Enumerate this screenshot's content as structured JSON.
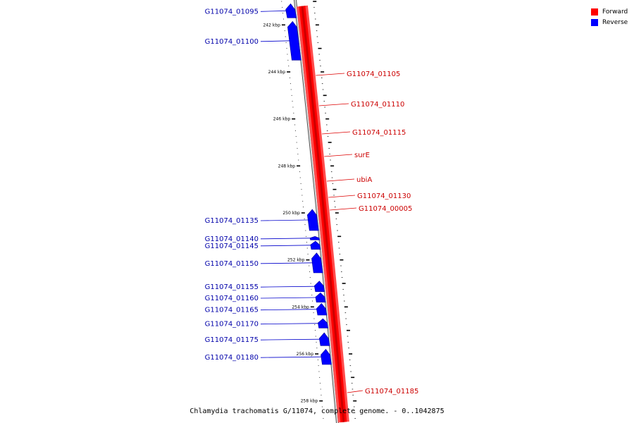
{
  "legend": {
    "forward": {
      "label": "Forward",
      "color": "#ff0000"
    },
    "reverse": {
      "label": "Reverse",
      "color": "#0000ff"
    }
  },
  "caption": "Chlamydia trachomatis G/11074, complete genome. - 0..1042875",
  "ticks": [
    {
      "label": "242 kbp",
      "pos": 242000
    },
    {
      "label": "244 kbp",
      "pos": 244000
    },
    {
      "label": "246 kbp",
      "pos": 246000
    },
    {
      "label": "248 kbp",
      "pos": 248000
    },
    {
      "label": "250 kbp",
      "pos": 250000
    },
    {
      "label": "252 kbp",
      "pos": 252000
    },
    {
      "label": "254 kbp",
      "pos": 254000
    },
    {
      "label": "256 kbp",
      "pos": 256000
    },
    {
      "label": "258 kbp",
      "pos": 258000
    }
  ],
  "forward_genes": [
    {
      "name": "G11074_01105",
      "start": 241200,
      "end": 258900
    },
    {
      "name": "G11074_01110"
    },
    {
      "name": "G11074_01115"
    },
    {
      "name": "surE"
    },
    {
      "name": "ubiA"
    },
    {
      "name": "G11074_01130"
    },
    {
      "name": "G11074_00005"
    },
    {
      "name": "G11074_01185"
    }
  ],
  "reverse_genes": [
    {
      "name": "G11074_01095",
      "start": 241100,
      "end": 241700
    },
    {
      "name": "G11074_01100",
      "start": 241850,
      "end": 243500
    },
    {
      "name": "G11074_01135",
      "start": 249850,
      "end": 250750
    },
    {
      "name": "G11074_01140",
      "start": 251000,
      "end": 251150
    },
    {
      "name": "G11074_01145",
      "start": 251200,
      "end": 251550
    },
    {
      "name": "G11074_01150",
      "start": 251700,
      "end": 252550
    },
    {
      "name": "G11074_01155",
      "start": 252900,
      "end": 253350
    },
    {
      "name": "G11074_01160",
      "start": 253400,
      "end": 253800
    },
    {
      "name": "G11074_01165",
      "start": 253850,
      "end": 254350
    },
    {
      "name": "G11074_01170",
      "start": 254500,
      "end": 254900
    },
    {
      "name": "G11074_01175",
      "start": 255100,
      "end": 255650
    },
    {
      "name": "G11074_01180",
      "start": 255800,
      "end": 256450
    }
  ]
}
